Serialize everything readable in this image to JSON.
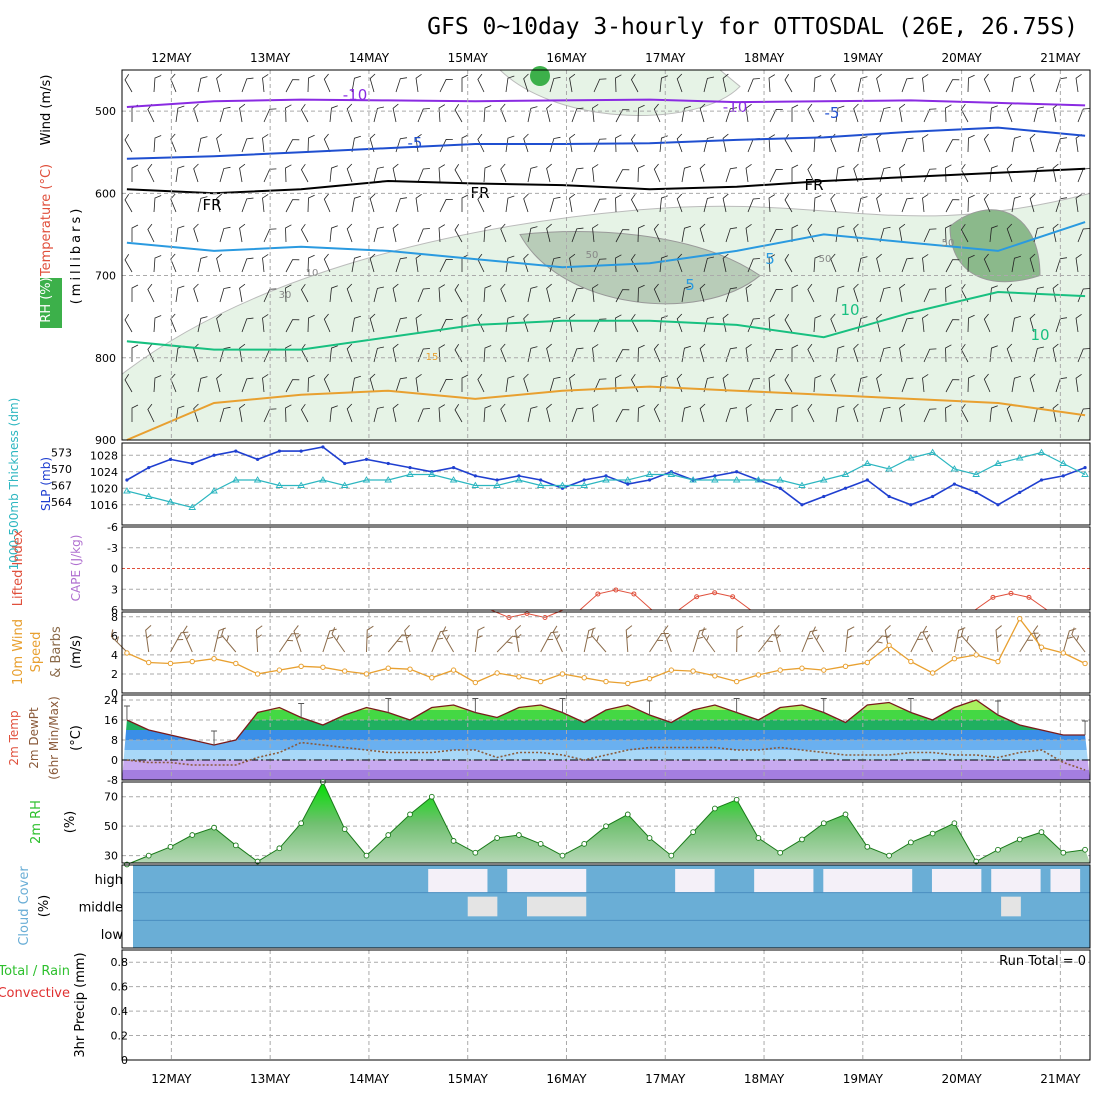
{
  "title": "GFS 0~10day 3-hourly for OTTOSDAL (26E, 26.75S)",
  "date_labels": [
    "12MAY",
    "13MAY",
    "14MAY",
    "15MAY",
    "16MAY",
    "17MAY",
    "18MAY",
    "19MAY",
    "20MAY",
    "21MAY"
  ],
  "colors": {
    "grid": "#aaaaaa",
    "rh_fill": "#3cb04a",
    "temp_label": "#e0503c",
    "slp_line": "#1f3fd0",
    "thickness_line": "#2cb6c0",
    "lifted_index": "#e0503c",
    "cape": "#b070d0",
    "wind_speed": "#e8a030",
    "wind_barb": "#8b6b4a",
    "rh_2m": "#2ec02e",
    "cloud": "#6aaed6",
    "precip_total": "#2ec02e",
    "precip_conv": "#e03030"
  },
  "chart_data": [
    {
      "type": "contour",
      "panel": "upper-air",
      "ylabel_parts": [
        {
          "text": "RH (%)",
          "color": "#ffffff"
        },
        {
          "text": "Temperature (°C)",
          "color": "#e0503c"
        },
        {
          "text": "Wind (m/s)",
          "color": "#000000"
        }
      ],
      "ylabel_units": "(millibars)",
      "y_ticks": [
        500,
        600,
        700,
        800,
        900
      ],
      "ylim": [
        450,
        900
      ],
      "temperature_contours": [
        {
          "label": "-10",
          "color": "#8a2be2",
          "levels": [
            495,
            488,
            486,
            487,
            488,
            487,
            486,
            489,
            488,
            487,
            490,
            493
          ]
        },
        {
          "label": "-5",
          "color": "#1f4fd0",
          "levels": [
            558,
            555,
            550,
            545,
            540,
            540,
            539,
            535,
            532,
            525,
            520,
            530
          ]
        },
        {
          "label": "FR",
          "color": "#000000",
          "levels": [
            595,
            600,
            595,
            585,
            588,
            590,
            595,
            592,
            585,
            580,
            575,
            570
          ]
        },
        {
          "label": "5",
          "color": "#2a9ae0",
          "levels": [
            660,
            670,
            665,
            670,
            680,
            690,
            685,
            670,
            650,
            660,
            670,
            635
          ]
        },
        {
          "label": "10",
          "color": "#18c080",
          "levels": [
            780,
            790,
            790,
            775,
            760,
            755,
            755,
            760,
            775,
            745,
            720,
            725
          ]
        },
        {
          "label": "15",
          "color": "#e8a030",
          "levels": [
            900,
            855,
            845,
            840,
            850,
            840,
            835,
            840,
            845,
            850,
            855,
            870
          ]
        }
      ],
      "contour_labels": [
        "-10",
        "-10",
        "-5",
        "-5",
        "FR",
        "FR",
        "FR",
        "5",
        "5",
        "10",
        "10",
        "15",
        "30",
        "50",
        "50",
        "50",
        "10"
      ]
    },
    {
      "type": "line",
      "panel": "slp-thickness",
      "ylabel_left": "1000-500mb Thickness (dm)",
      "ylabel_right": "SLP (mb)",
      "thickness_ticks": [
        "573",
        "570",
        "567",
        "564"
      ],
      "slp_ticks": [
        "1028",
        "1024",
        "1020",
        "1016"
      ],
      "series": [
        {
          "axis": "slp",
          "values": [
            1022,
            1025,
            1027,
            1026,
            1028,
            1029,
            1027,
            1029,
            1029,
            1030,
            1026,
            1027,
            1026,
            1025,
            1024,
            1025,
            1023,
            1022,
            1023,
            1022,
            1020,
            1022,
            1023,
            1021,
            1022,
            1024,
            1022,
            1023,
            1024,
            1022,
            1020,
            1016,
            1018,
            1020,
            1022,
            1018,
            1016,
            1018,
            1021,
            1019,
            1016,
            1019,
            1022,
            1023,
            1025
          ]
        },
        {
          "axis": "thickness",
          "values": [
            566,
            565,
            564,
            563,
            566,
            568,
            568,
            567,
            567,
            568,
            567,
            568,
            568,
            569,
            569,
            568,
            567,
            567,
            568,
            567,
            567,
            567,
            568,
            568,
            569,
            569,
            568,
            568,
            568,
            568,
            568,
            567,
            568,
            569,
            571,
            570,
            572,
            573,
            570,
            569,
            571,
            572,
            573,
            571,
            569
          ]
        }
      ]
    },
    {
      "type": "line",
      "panel": "li-cape",
      "ylabel_left": "Lifted Index",
      "ylabel_right": "CAPE (J/kg)",
      "li_ticks": [
        "-6",
        "-3",
        "0",
        "3",
        "6"
      ],
      "li_ylim": [
        -6,
        6
      ],
      "cape_peaks": [
        {
          "day": 15.6,
          "value": 6.5
        },
        {
          "day": 16.5,
          "value": 3.1
        },
        {
          "day": 17.5,
          "value": 3.5
        },
        {
          "day": 20.5,
          "value": 3.6
        }
      ]
    },
    {
      "type": "line",
      "panel": "wind10m",
      "ylabel_left": "10m Wind",
      "ylabel_mid": "Speed",
      "ylabel_right": "& Barbs",
      "ylabel_units": "(m/s)",
      "y_ticks": [
        "0",
        "2",
        "4",
        "6",
        "8"
      ],
      "ylim": [
        0,
        8.5
      ],
      "values": [
        4.2,
        3.2,
        3.1,
        3.3,
        3.6,
        3.1,
        2.0,
        2.4,
        2.8,
        2.7,
        2.3,
        2.0,
        2.6,
        2.5,
        1.6,
        2.4,
        1.1,
        2.1,
        1.7,
        1.2,
        2.0,
        1.6,
        1.2,
        1.0,
        1.5,
        2.4,
        2.3,
        1.8,
        1.2,
        1.9,
        2.4,
        2.6,
        2.4,
        2.8,
        3.2,
        5.0,
        3.3,
        2.1,
        3.6,
        4.0,
        3.3,
        7.8,
        4.8,
        4.2,
        3.1
      ]
    },
    {
      "type": "area",
      "panel": "temp2m",
      "ylabel_left": "2m Temp",
      "ylabel_mid": "2m DewPt",
      "ylabel_right": "(6hr Min/Max)",
      "ylabel_units": "(°C)",
      "y_ticks": [
        "24",
        "16",
        "8",
        "0",
        "-8"
      ],
      "ylim": [
        -8,
        26
      ],
      "temp": [
        16,
        12,
        10,
        8,
        6,
        8,
        19,
        21,
        17,
        14,
        18,
        21,
        19,
        16,
        21,
        22,
        19,
        17,
        21,
        22,
        19,
        15,
        20,
        22,
        18,
        15,
        20,
        22,
        19,
        16,
        21,
        22,
        19,
        15,
        22,
        23,
        19,
        16,
        21,
        24,
        18,
        14,
        12,
        10,
        10
      ],
      "dewpt": [
        0,
        -1,
        -1,
        -2,
        -2,
        -2,
        1,
        3,
        7,
        6,
        5,
        4,
        3,
        3,
        3,
        4,
        4,
        1,
        3,
        3,
        2,
        0,
        2,
        4,
        5,
        5,
        5,
        5,
        4,
        4,
        5,
        4,
        3,
        2,
        2,
        2,
        3,
        3,
        2,
        2,
        1,
        3,
        4,
        -1,
        -4
      ]
    },
    {
      "type": "area",
      "panel": "rh2m",
      "ylabel_left": "2m RH",
      "ylabel_units": "(%)",
      "y_ticks": [
        "30",
        "50",
        "70"
      ],
      "ylim": [
        25,
        80
      ],
      "values": [
        24,
        30,
        36,
        44,
        49,
        37,
        26,
        35,
        52,
        80,
        48,
        30,
        44,
        58,
        70,
        40,
        32,
        42,
        44,
        38,
        30,
        38,
        50,
        58,
        42,
        30,
        46,
        62,
        68,
        42,
        32,
        41,
        52,
        58,
        36,
        30,
        39,
        45,
        52,
        26,
        34,
        41,
        46,
        32,
        34
      ]
    },
    {
      "type": "heatmap",
      "panel": "cloud",
      "ylabel": "Cloud Cover",
      "ylabel_units": "(%)",
      "rows": [
        "high",
        "middle",
        "low"
      ],
      "high_gaps": [
        [
          14.6,
          15.2
        ],
        [
          15.4,
          16.2
        ],
        [
          17.1,
          17.5
        ],
        [
          17.9,
          18.5
        ],
        [
          18.6,
          19.5
        ],
        [
          19.7,
          20.2
        ],
        [
          20.3,
          20.8
        ],
        [
          20.9,
          21.2
        ]
      ],
      "middle_gaps": [
        [
          15.0,
          15.3
        ],
        [
          15.6,
          16.2
        ],
        [
          20.4,
          20.6
        ]
      ]
    },
    {
      "type": "bar",
      "panel": "precip",
      "ylabel_left": "Total / Rain",
      "ylabel_right": "Convective",
      "ylabel_units": "3hr Precip (mm)",
      "y_ticks": [
        "0",
        "0.2",
        "0.4",
        "0.6",
        "0.8"
      ],
      "ylim": [
        0,
        0.9
      ],
      "values": [],
      "annotation": "Run Total = 0"
    }
  ]
}
